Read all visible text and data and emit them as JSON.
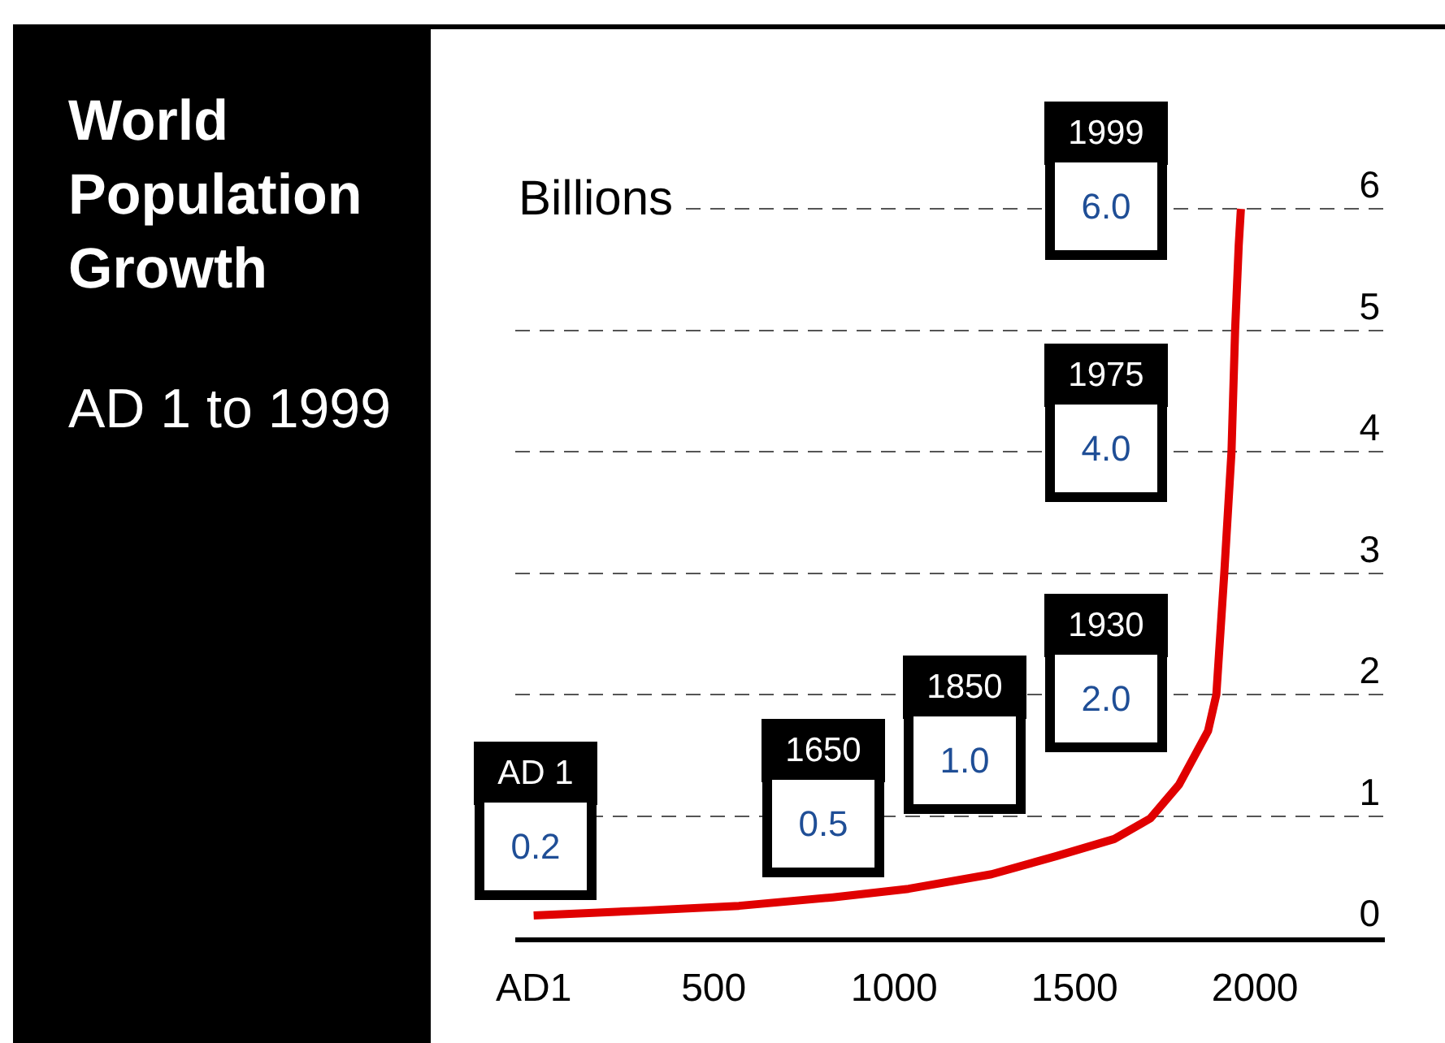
{
  "chart_data": {
    "type": "line",
    "title": "World Population Growth",
    "subtitle": "AD 1 to 1999",
    "ylabel": "Billions",
    "x": [
      1,
      300,
      570,
      830,
      1040,
      1270,
      1450,
      1610,
      1710,
      1790,
      1870,
      1893,
      1915,
      1935,
      1945,
      1955,
      1961
    ],
    "series": [
      {
        "color": "#e00000",
        "values": [
          0.18,
          0.22,
          0.26,
          0.33,
          0.4,
          0.52,
          0.67,
          0.81,
          0.98,
          1.26,
          1.7,
          2.0,
          3.0,
          4.0,
          5.0,
          5.7,
          6.0
        ]
      }
    ],
    "xlim": [
      -50,
      2360
    ],
    "xticks": [
      {
        "value": 1,
        "label": "AD1"
      },
      500,
      1000,
      1500,
      2000
    ],
    "ylim": [
      0,
      7.72
    ],
    "yticks": [
      0,
      1,
      2,
      3,
      4,
      5,
      6
    ],
    "grid": "y",
    "line_style": "solid",
    "annotations": [
      "AD 1",
      "0.2",
      "1650",
      "0.5",
      "1850",
      "1.0",
      "1930",
      "2.0",
      "1975",
      "4.0",
      "1999",
      "6.0"
    ]
  }
}
